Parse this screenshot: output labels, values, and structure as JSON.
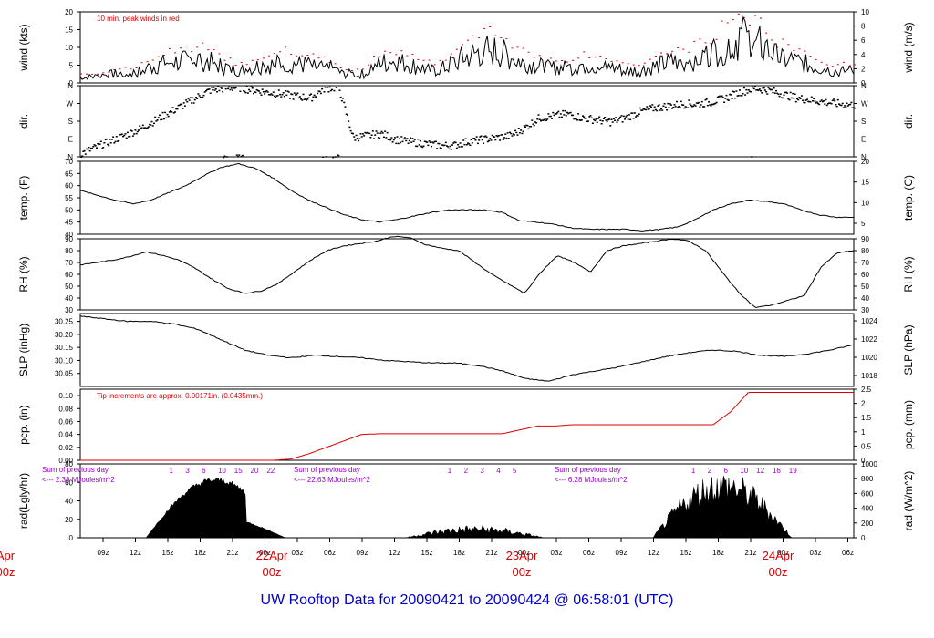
{
  "title": "UW Rooftop Data for 20090421  to  20090424 @ 06:58:01  (UTC)",
  "colors": {
    "black": "#000000",
    "red": "#dd0000",
    "purple": "#9900cc",
    "blue": "#0000cc"
  },
  "chart_data": {
    "type": "line",
    "x_ticks": [
      "09z",
      "12z",
      "15z",
      "18z",
      "21z",
      "00z",
      "03z",
      "06z",
      "09z",
      "12z",
      "15z",
      "18z",
      "21z",
      "00z",
      "03z",
      "06z",
      "09z",
      "12z",
      "15z",
      "18z",
      "21z",
      "00z",
      "03z",
      "06z"
    ],
    "day_labels": [
      {
        "line1": "Apr",
        "line2": "00z"
      },
      {
        "line1": "22Apr",
        "line2": "00z"
      },
      {
        "line1": "23Apr",
        "line2": "00z"
      },
      {
        "line1": "24Apr",
        "line2": "00z"
      }
    ],
    "panels": [
      {
        "id": "wind",
        "ylabel": "wind (kts)",
        "ylabel_right": "wind (m/s)",
        "ylim": [
          0,
          20
        ],
        "yticks": [
          "0",
          "5",
          "10",
          "15",
          "20"
        ],
        "right_ticks": [
          "0",
          "2",
          "4",
          "6",
          "8",
          "10"
        ],
        "annotation": "10 min. peak winds in red",
        "series": [
          {
            "kind": "wind",
            "values": [
              2,
              2,
              2.5,
              3,
              3,
              3.5,
              5,
              6,
              7,
              7,
              8,
              7.5,
              6,
              5,
              4,
              5,
              6,
              6,
              7,
              6,
              6,
              5,
              5,
              3,
              3,
              3,
              6,
              7,
              7,
              6,
              5,
              4,
              5,
              7,
              9,
              10,
              11,
              10,
              8,
              7,
              6,
              5,
              5,
              5,
              6,
              6,
              5,
              5,
              4,
              4,
              5,
              6,
              7,
              7,
              8,
              9,
              11,
              13,
              15,
              14,
              12,
              9,
              8,
              7,
              6,
              5,
              4,
              4,
              4
            ]
          }
        ]
      },
      {
        "id": "dir",
        "ylabel": "dir.",
        "ylabel_right": "dir.",
        "yticks": [
          "N",
          "E",
          "S",
          "W",
          "N"
        ],
        "right_ticks": [
          "N",
          "E",
          "S",
          "W",
          "N"
        ],
        "series": [
          {
            "kind": "dir",
            "values": [
              20,
              50,
              80,
              110,
              140,
              180,
              220,
              260,
              300,
              340,
              350,
              355,
              340,
              330,
              320,
              310,
              300,
              350,
              355,
              100,
              110,
              120,
              90,
              80,
              70,
              60,
              60,
              80,
              90,
              100,
              110,
              150,
              200,
              210,
              220,
              200,
              190,
              180,
              200,
              230,
              250,
              260,
              270,
              270,
              280,
              300,
              330,
              350,
              340,
              320,
              300,
              290,
              280,
              270,
              265
            ]
          }
        ]
      },
      {
        "id": "temp",
        "ylabel": "temp. (F)",
        "ylabel_right": "temp. (C)",
        "ylim": [
          40,
          70
        ],
        "yticks": [
          "40",
          "45",
          "50",
          "55",
          "60",
          "65",
          "70"
        ],
        "right_ticks": [
          "5",
          "10",
          "15",
          "20"
        ],
        "series": [
          {
            "kind": "line",
            "values": [
              58,
              56,
              54,
              52.5,
              54,
              57,
              60,
              64,
              67.5,
              69,
              67,
              63,
              58,
              54,
              51,
              48,
              46,
              45,
              46,
              47.5,
              49,
              50,
              50,
              50,
              49,
              45.5,
              45,
              44,
              42.5,
              42,
              42,
              42,
              41.5,
              42,
              43,
              46,
              50,
              52.5,
              54,
              53.5,
              52.5,
              50,
              48,
              47,
              47
            ]
          }
        ]
      },
      {
        "id": "rh",
        "ylabel": "RH (%)",
        "ylabel_right": "RH (%)",
        "ylim": [
          30,
          90
        ],
        "yticks": [
          "30",
          "40",
          "50",
          "60",
          "70",
          "80",
          "90"
        ],
        "right_ticks": [
          "30",
          "40",
          "50",
          "60",
          "70",
          "80",
          "90"
        ],
        "series": [
          {
            "kind": "line",
            "values": [
              68,
              70,
              72,
              75,
              79,
              76,
              72,
              65,
              56,
              48,
              44,
              46,
              52,
              62,
              72,
              80,
              84,
              86,
              88,
              92,
              91,
              85,
              82,
              80,
              70,
              60,
              52,
              44,
              62,
              76,
              70,
              62,
              80,
              84,
              86,
              88,
              90,
              88,
              80,
              62,
              45,
              32,
              34,
              38,
              42,
              66,
              78,
              80
            ]
          }
        ]
      },
      {
        "id": "slp",
        "ylabel": "SLP (inHg)",
        "ylabel_right": "SLP (hPa)",
        "ylim": [
          30.0,
          30.28
        ],
        "yticks": [
          "30.05",
          "30.10",
          "30.15",
          "30.20",
          "30.25"
        ],
        "right_ticks": [
          "1018",
          "1020",
          "1022",
          "1024"
        ],
        "series": [
          {
            "kind": "line",
            "values": [
              30.27,
              30.26,
              30.25,
              30.25,
              30.24,
              30.22,
              30.18,
              30.14,
              30.12,
              30.11,
              30.12,
              30.115,
              30.11,
              30.1,
              30.095,
              30.09,
              30.09,
              30.08,
              30.06,
              30.03,
              30.02,
              30.045,
              30.06,
              30.075,
              30.095,
              30.115,
              30.13,
              30.14,
              30.135,
              30.12,
              30.115,
              30.125,
              30.14,
              30.16
            ]
          }
        ]
      },
      {
        "id": "pcp",
        "ylabel": "pcp. (in)",
        "ylabel_right": "pcp. (mm)",
        "ylim": [
          0,
          0.11
        ],
        "yticks": [
          "0.00",
          "0.02",
          "0.04",
          "0.06",
          "0.08",
          "0.10"
        ],
        "right_ticks": [
          "0",
          "0.5",
          "1",
          "1.5",
          "2",
          "2.5"
        ],
        "annotation": "Tip increments are approx. 0.00171in. (0.0435mm.)",
        "series": [
          {
            "kind": "step",
            "values": [
              0.0,
              0.0,
              0.0,
              0.0,
              0.0,
              0.0,
              0.0,
              0.0,
              0.0,
              0.0,
              0.0,
              0.0,
              0.002,
              0.01,
              0.02,
              0.03,
              0.04,
              0.041,
              0.041,
              0.041,
              0.041,
              0.041,
              0.041,
              0.041,
              0.041,
              0.047,
              0.053,
              0.053,
              0.055,
              0.055,
              0.055,
              0.055,
              0.055,
              0.055,
              0.055,
              0.055,
              0.055,
              0.075,
              0.105,
              0.105,
              0.105,
              0.105,
              0.105,
              0.105,
              0.105
            ]
          }
        ]
      },
      {
        "id": "rad",
        "ylabel": "rad(Lgly/hr)",
        "ylabel_right": "rad (W/m^2)",
        "ylim": [
          0,
          80
        ],
        "yticks": [
          "0",
          "20",
          "40",
          "60",
          "80"
        ],
        "right_ticks": [
          "0",
          "200",
          "400",
          "600",
          "800",
          "1000"
        ],
        "sun_hours": [
          {
            "hours": [
              "1",
              "3",
              "6",
              "10",
              "15",
              "20",
              "22"
            ]
          },
          {
            "hours": [
              "1",
              "2",
              "3",
              "4",
              "5"
            ]
          },
          {
            "hours": [
              "1",
              "2",
              "6",
              "10",
              "12",
              "16",
              "19"
            ]
          }
        ],
        "sum_notes": [
          {
            "line1": "Sum of previous day",
            "line2": "<--- 2.38 MJoules/m^2"
          },
          {
            "line1": "Sum of previous day",
            "line2": "<--- 22.63 MJoules/m^2"
          },
          {
            "line1": "Sum of previous day",
            "line2": "<--- 6.28 MJoules/m^2"
          }
        ],
        "series": [
          {
            "kind": "area",
            "days": [
              {
                "peak": 66,
                "cloudy": 0.1
              },
              {
                "peak": 14,
                "cloudy": 0.7
              },
              {
                "peak": 74,
                "cloudy": 0.5
              }
            ]
          }
        ]
      }
    ]
  }
}
